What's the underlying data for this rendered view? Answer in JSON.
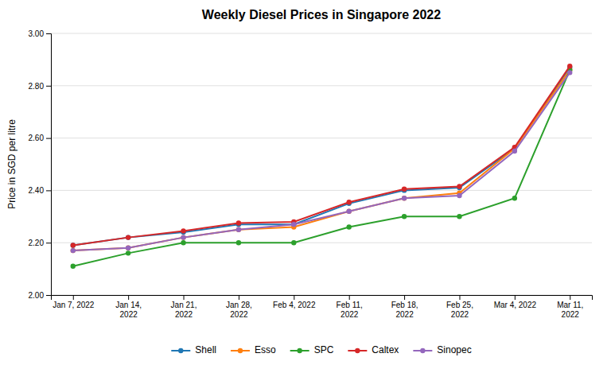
{
  "chart_data": {
    "type": "line",
    "title": "Weekly Diesel Prices in Singapore 2022",
    "y_label": "Price in SGD per litre",
    "categories": [
      "Jan 7, 2022",
      "Jan 14,\n2022",
      "Jan 21,\n2022",
      "Jan 28,\n2022",
      "Feb 4, 2022",
      "Feb 11,\n2022",
      "Feb 18,\n2022",
      "Feb 25,\n2022",
      "Mar 4, 2022",
      "Mar 11,\n2022"
    ],
    "series": [
      {
        "name": "Shell",
        "values": [
          2.19,
          2.22,
          2.24,
          2.27,
          2.27,
          2.35,
          2.4,
          2.41,
          2.56,
          2.87
        ]
      },
      {
        "name": "Esso",
        "values": [
          2.17,
          2.18,
          2.22,
          2.25,
          2.26,
          2.32,
          2.37,
          2.39,
          2.56,
          2.86
        ]
      },
      {
        "name": "SPC",
        "values": [
          2.11,
          2.16,
          2.2,
          2.2,
          2.2,
          2.26,
          2.3,
          2.3,
          2.37,
          2.86
        ]
      },
      {
        "name": "Caltex",
        "values": [
          2.19,
          2.22,
          2.245,
          2.275,
          2.28,
          2.355,
          2.405,
          2.415,
          2.565,
          2.875
        ]
      },
      {
        "name": "Sinopec",
        "values": [
          2.17,
          2.18,
          2.22,
          2.25,
          2.27,
          2.32,
          2.37,
          2.38,
          2.55,
          2.85
        ]
      }
    ],
    "ylim": [
      2.0,
      3.0
    ],
    "yticks": [
      {
        "value": 2.0,
        "label": "2.00"
      },
      {
        "value": 2.2,
        "label": "2.20"
      },
      {
        "value": 2.4,
        "label": "2.40"
      },
      {
        "value": 2.6,
        "label": "2.60"
      },
      {
        "value": 2.8,
        "label": "2.80"
      },
      {
        "value": 3.0,
        "label": "3.00"
      }
    ],
    "grid": true,
    "legend": "bottom",
    "marker": "circle"
  }
}
